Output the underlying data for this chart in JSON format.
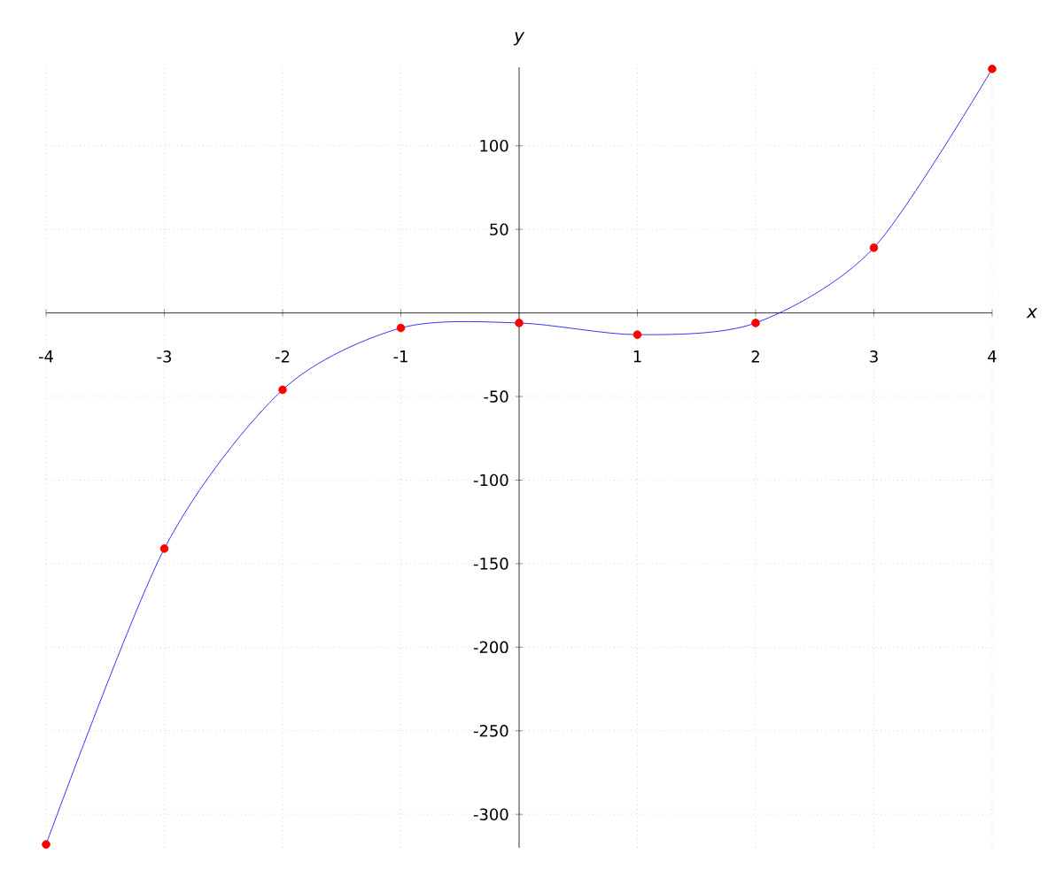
{
  "chart_data": {
    "type": "line",
    "xlabel": "x",
    "ylabel": "y",
    "x": [
      -4,
      -3,
      -2,
      -1,
      0,
      1,
      2,
      3,
      4
    ],
    "series": [
      {
        "color": "#0000ff",
        "values": [
          -318,
          -141,
          -46,
          -9,
          -6,
          -13,
          -6,
          39,
          146
        ],
        "marker": "none"
      },
      {
        "type": "scatter",
        "color": "#ff0000",
        "values": [
          -318,
          -141,
          -46,
          -9,
          -6,
          -13,
          -6,
          39,
          146
        ],
        "marker": "circle"
      }
    ],
    "xlim": [
      -4,
      4
    ],
    "ylim": [
      -320,
      147
    ],
    "xticks": [
      -4,
      -3,
      -2,
      -1,
      1,
      2,
      3,
      4
    ],
    "yticks": [
      -300,
      -250,
      -200,
      -150,
      -100,
      -50,
      50,
      100
    ],
    "grid": true
  }
}
